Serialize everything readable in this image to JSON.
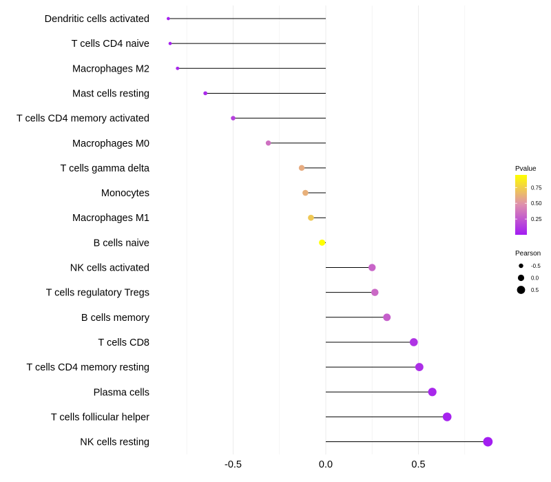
{
  "chart_data": {
    "type": "lollipop",
    "xlim": [
      -0.86,
      0.87
    ],
    "x_ticks": [
      -0.5,
      0.0,
      0.5
    ],
    "x_tick_labels": [
      "-0.5",
      "0.0",
      "0.5"
    ],
    "grid": true,
    "xlabel": "",
    "ylabel": "",
    "categories": [
      "Dendritic cells activated",
      "T cells CD4 naive",
      "Macrophages M2",
      "Mast cells resting",
      "T cells CD4 memory activated",
      "Macrophages M0",
      "T cells gamma delta",
      "Monocytes",
      "Macrophages M1",
      "B cells naive",
      "NK cells activated",
      "T cells regulatory  Tregs ",
      "B cells memory",
      "T cells CD8",
      "T cells CD4 memory resting",
      "Plasma cells",
      "T cells follicular helper",
      "NK cells resting"
    ],
    "pearson": [
      -0.85,
      -0.84,
      -0.8,
      -0.65,
      -0.5,
      -0.31,
      -0.13,
      -0.11,
      -0.08,
      -0.02,
      0.25,
      0.265,
      0.33,
      0.475,
      0.505,
      0.575,
      0.655,
      0.875
    ],
    "pvalue": [
      0.02,
      0.02,
      0.05,
      0.06,
      0.15,
      0.35,
      0.6,
      0.62,
      0.72,
      0.95,
      0.3,
      0.32,
      0.28,
      0.1,
      0.08,
      0.05,
      0.03,
      0.01
    ],
    "legend": {
      "placement": "right",
      "color": {
        "title": "Pvalue",
        "ticks": [
          0.25,
          0.5,
          0.75
        ],
        "tick_labels": [
          "0.25",
          "0.50",
          "0.75"
        ],
        "range": [
          0.0,
          0.95
        ],
        "low_color": "#A21CF2",
        "mid_color": "#DE8EAF",
        "high_color": "#FFFF00"
      },
      "size": {
        "title": "Pearson",
        "values": [
          -0.5,
          0.0,
          0.5
        ],
        "labels": [
          "-0.5",
          "0.0",
          "0.5"
        ]
      }
    }
  }
}
